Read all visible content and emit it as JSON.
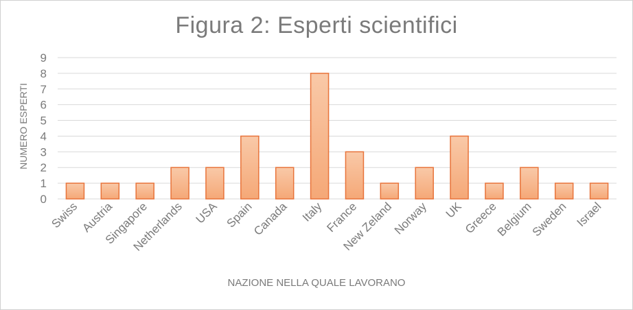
{
  "chart_data": {
    "type": "bar",
    "title": "Figura 2: Esperti scientifici",
    "xlabel": "NAZIONE NELLA QUALE LAVORANO",
    "ylabel": "NUMERO ESPERTI",
    "categories": [
      "Swiss",
      "Austria",
      "Singapore",
      "Netherlands",
      "USA",
      "Spain",
      "Canada",
      "Italy",
      "France",
      "New Zeland",
      "Norway",
      "UK",
      "Greece",
      "Belgium",
      "Sweden",
      "Israel"
    ],
    "values": [
      1,
      1,
      1,
      2,
      2,
      4,
      2,
      8,
      3,
      1,
      2,
      4,
      1,
      2,
      1,
      1
    ],
    "yticks": [
      "0",
      "1",
      "2",
      "3",
      "4",
      "5",
      "6",
      "7",
      "8",
      "9"
    ],
    "ylim": [
      0,
      9
    ],
    "grid": true,
    "colors": {
      "bar_fill_top": "#f9c9a8",
      "bar_fill_bottom": "#f5a877",
      "bar_stroke": "#e8733a",
      "grid": "#d9d9d9",
      "text": "#7a7a7a"
    }
  }
}
